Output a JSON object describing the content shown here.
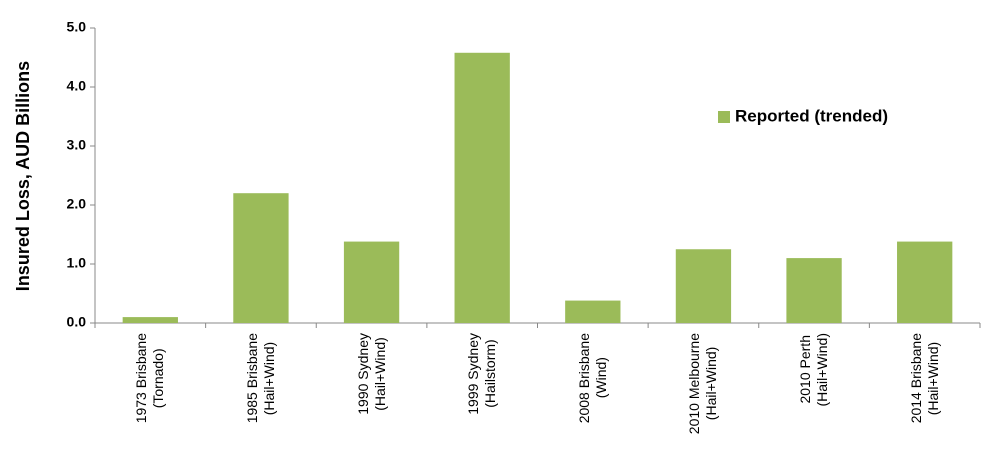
{
  "chart_data": {
    "type": "bar",
    "y_label": "Insured Loss, AUD Billions",
    "categories": [
      "1973 Brisbane\n(Tornado)",
      "1985 Brisbane\n(Hail+Wind)",
      "1990 Sydney\n(Hail+Wind)",
      "1999 Sydney\n(Hailstorm)",
      "2008 Brisbane\n(Wind)",
      "2010 Melbourne\n(Hail+Wind)",
      "2010 Perth\n(Hail+Wind)",
      "2014 Brisbane\n(Hail+Wind)"
    ],
    "series": [
      {
        "name": "Reported (trended)",
        "color": "#9bbb59",
        "values": [
          0.1,
          2.2,
          1.38,
          4.58,
          0.38,
          1.25,
          1.1,
          1.38
        ]
      }
    ],
    "ylim": [
      0,
      5
    ],
    "yticks": [
      {
        "value": 0,
        "label": "0.0"
      },
      {
        "value": 1,
        "label": "1.0"
      },
      {
        "value": 2,
        "label": "2.0"
      },
      {
        "value": 3,
        "label": "3.0"
      },
      {
        "value": 4,
        "label": "4.0"
      },
      {
        "value": 5,
        "label": "5.0"
      }
    ],
    "grid": false,
    "legend": "upper right"
  }
}
